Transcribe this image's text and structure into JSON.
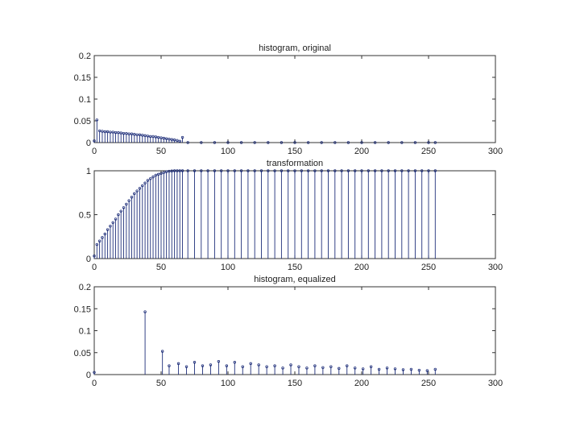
{
  "chart_data": [
    {
      "type": "stem",
      "title": "histogram, original",
      "xlim": [
        0,
        300
      ],
      "ylim": [
        0,
        0.2
      ],
      "xticks": [
        0,
        50,
        100,
        150,
        200,
        250,
        300
      ],
      "xtick_labels": [
        "0",
        "50",
        "100",
        "150",
        "200",
        "250",
        "300"
      ],
      "yticks": [
        0,
        0.05,
        0.1,
        0.15,
        0.2
      ],
      "ytick_labels": [
        "0",
        "0.05",
        "0.1",
        "0.15",
        "0.2"
      ],
      "color": "#1f2f7a",
      "x": [
        0,
        2,
        4,
        6,
        8,
        10,
        12,
        14,
        16,
        18,
        20,
        22,
        24,
        26,
        28,
        30,
        32,
        34,
        36,
        38,
        40,
        42,
        44,
        46,
        48,
        50,
        52,
        54,
        56,
        58,
        60,
        62,
        64,
        66,
        70,
        80,
        90,
        100,
        110,
        120,
        130,
        140,
        150,
        160,
        170,
        180,
        190,
        200,
        210,
        220,
        230,
        240,
        250,
        255
      ],
      "y": [
        0.004,
        0.052,
        0.027,
        0.026,
        0.025,
        0.025,
        0.024,
        0.024,
        0.023,
        0.023,
        0.022,
        0.021,
        0.021,
        0.02,
        0.02,
        0.019,
        0.018,
        0.018,
        0.017,
        0.016,
        0.015,
        0.014,
        0.014,
        0.013,
        0.012,
        0.011,
        0.01,
        0.009,
        0.008,
        0.007,
        0.006,
        0.005,
        0.003,
        0.012,
        0.0,
        0.0,
        0.0,
        0.0,
        0.0,
        0.0,
        0.0,
        0.0,
        0.0,
        0.0,
        0.0,
        0.0,
        0.0,
        0.0,
        0.0,
        0.0,
        0.0,
        0.0,
        0.0,
        0.0
      ]
    },
    {
      "type": "stem",
      "title": "transformation",
      "xlim": [
        0,
        300
      ],
      "ylim": [
        0,
        1
      ],
      "xticks": [
        0,
        50,
        100,
        150,
        200,
        250,
        300
      ],
      "xtick_labels": [
        "0",
        "50",
        "100",
        "150",
        "200",
        "250",
        "300"
      ],
      "yticks": [
        0,
        0.5,
        1
      ],
      "ytick_labels": [
        "0",
        "0.5",
        "1"
      ],
      "color": "#1f2f7a",
      "x": [
        0,
        2,
        4,
        6,
        8,
        10,
        12,
        14,
        16,
        18,
        20,
        22,
        24,
        26,
        28,
        30,
        32,
        34,
        36,
        38,
        40,
        42,
        44,
        46,
        48,
        50,
        52,
        54,
        56,
        58,
        60,
        62,
        64,
        66,
        70,
        75,
        80,
        85,
        90,
        95,
        100,
        105,
        110,
        115,
        120,
        125,
        130,
        135,
        140,
        145,
        150,
        155,
        160,
        165,
        170,
        175,
        180,
        185,
        190,
        195,
        200,
        205,
        210,
        215,
        220,
        225,
        230,
        235,
        240,
        245,
        250,
        255
      ],
      "y": [
        0.03,
        0.16,
        0.2,
        0.24,
        0.28,
        0.33,
        0.37,
        0.41,
        0.45,
        0.5,
        0.54,
        0.58,
        0.62,
        0.66,
        0.7,
        0.74,
        0.77,
        0.8,
        0.83,
        0.86,
        0.89,
        0.91,
        0.93,
        0.95,
        0.96,
        0.97,
        0.98,
        0.99,
        0.995,
        0.998,
        1,
        1,
        1,
        1,
        1,
        1,
        1,
        1,
        1,
        1,
        1,
        1,
        1,
        1,
        1,
        1,
        1,
        1,
        1,
        1,
        1,
        1,
        1,
        1,
        1,
        1,
        1,
        1,
        1,
        1,
        1,
        1,
        1,
        1,
        1,
        1,
        1,
        1,
        1,
        1,
        1,
        1
      ]
    },
    {
      "type": "stem",
      "title": "histogram, equalized",
      "xlim": [
        0,
        300
      ],
      "ylim": [
        0,
        0.2
      ],
      "xticks": [
        0,
        50,
        100,
        150,
        200,
        250,
        300
      ],
      "xtick_labels": [
        "0",
        "50",
        "100",
        "150",
        "200",
        "250",
        "300"
      ],
      "yticks": [
        0,
        0.05,
        0.1,
        0.15,
        0.2
      ],
      "ytick_labels": [
        "0",
        "0.05",
        "0.1",
        "0.15",
        "0.2"
      ],
      "color": "#1f2f7a",
      "x": [
        0,
        38,
        51,
        56,
        63,
        69,
        75,
        81,
        87,
        93,
        99,
        105,
        111,
        117,
        123,
        129,
        135,
        141,
        147,
        153,
        159,
        165,
        171,
        177,
        183,
        189,
        195,
        201,
        207,
        213,
        219,
        225,
        231,
        237,
        243,
        249,
        255
      ],
      "y": [
        0.005,
        0.143,
        0.053,
        0.02,
        0.025,
        0.018,
        0.028,
        0.02,
        0.022,
        0.03,
        0.02,
        0.028,
        0.018,
        0.025,
        0.022,
        0.018,
        0.02,
        0.015,
        0.022,
        0.018,
        0.015,
        0.02,
        0.016,
        0.018,
        0.014,
        0.02,
        0.015,
        0.013,
        0.018,
        0.012,
        0.015,
        0.013,
        0.011,
        0.012,
        0.01,
        0.009,
        0.012
      ]
    }
  ]
}
